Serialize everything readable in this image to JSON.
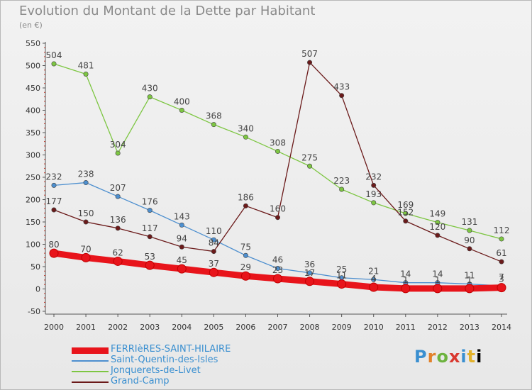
{
  "title": "Evolution du Montant de la Dette par Habitant",
  "subtitle": "(en €)",
  "logo": {
    "text": [
      "P",
      "r",
      "o",
      "x",
      "i",
      "t",
      "i"
    ]
  },
  "chart_data": {
    "type": "line",
    "x": [
      "2000",
      "2001",
      "2002",
      "2003",
      "2004",
      "2005",
      "2006",
      "2007",
      "2008",
      "2009",
      "2010",
      "2011",
      "2012",
      "2013",
      "2014"
    ],
    "ylim": [
      -50,
      550
    ],
    "yticks": [
      -50,
      0,
      50,
      100,
      150,
      200,
      250,
      300,
      350,
      400,
      450,
      500,
      550
    ],
    "grid": false,
    "legend_position": "bottom-left",
    "series": [
      {
        "name": "FERRIèRES-SAINT-HILAIRE",
        "color": "#e8141b",
        "thick": true,
        "values": [
          80,
          70,
          62,
          53,
          45,
          37,
          29,
          23,
          17,
          11,
          4,
          1,
          1,
          1,
          3
        ],
        "labels": [
          "80",
          "70",
          "62",
          "53",
          "45",
          "37",
          "29",
          "23",
          "17",
          "11",
          "4",
          "1",
          "1",
          "1",
          "3"
        ]
      },
      {
        "name": "Saint-Quentin-des-Isles",
        "color": "#4d8fcf",
        "thick": false,
        "values": [
          232,
          238,
          207,
          176,
          143,
          110,
          75,
          46,
          36,
          25,
          21,
          14,
          14,
          11,
          7
        ],
        "labels": [
          "232",
          "238",
          "207",
          "176",
          "143",
          "110",
          "75",
          "46",
          "36",
          "25",
          "21",
          "14",
          "14",
          "11",
          "7"
        ]
      },
      {
        "name": "Jonquerets-de-Livet",
        "color": "#7dc642",
        "thick": false,
        "values": [
          504,
          481,
          304,
          430,
          400,
          368,
          340,
          308,
          275,
          223,
          193,
          169,
          149,
          131,
          112
        ],
        "labels": [
          "504",
          "481",
          "304",
          "430",
          "400",
          "368",
          "340",
          "308",
          "275",
          "223",
          "193",
          "169",
          "149",
          "131",
          "112"
        ]
      },
      {
        "name": "Grand-Camp",
        "color": "#6b1a1a",
        "thick": false,
        "values": [
          177,
          150,
          136,
          117,
          94,
          84,
          186,
          160,
          507,
          433,
          232,
          152,
          120,
          90,
          61
        ],
        "labels": [
          "177",
          "150",
          "136",
          "117",
          "94",
          "84",
          "186",
          "160",
          "507",
          "433",
          "232",
          "152",
          "120",
          "90",
          "61"
        ]
      }
    ]
  }
}
